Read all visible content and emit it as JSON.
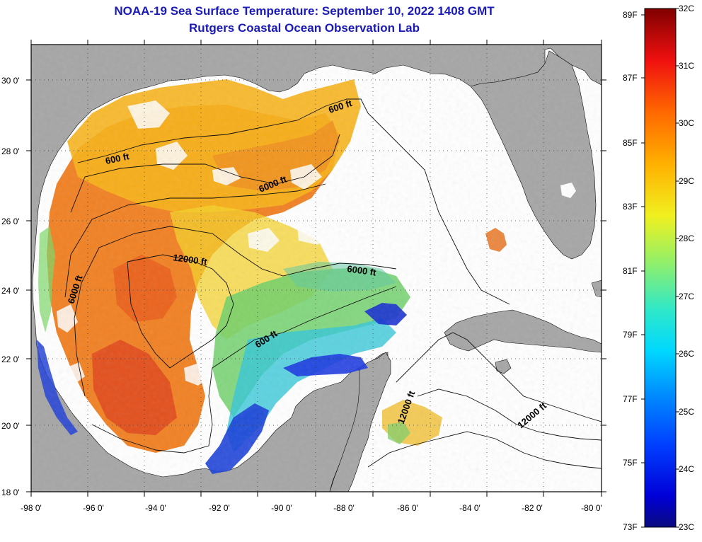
{
  "title": {
    "line1": "NOAA-19 Sea Surface Temperature:  September 10, 2022 1408 GMT",
    "line2": "Rutgers Coastal Ocean Observation Lab"
  },
  "map": {
    "longitude_labels": [
      "-98 0'",
      "-96 0'",
      "-94 0'",
      "-92 0'",
      "-90 0'",
      "-88 0'",
      "-86 0'",
      "-84 0'",
      "-82 0'",
      "-80 0'"
    ],
    "latitude_labels": [
      "30 0'",
      "28 0'",
      "26 0'",
      "24 0'",
      "22 0'",
      "20 0'",
      "18 0'"
    ],
    "contour_labels": [
      "600 ft",
      "600 ft",
      "6000 ft",
      "12000 ft",
      "6000 ft",
      "6000 ft",
      "600 ft",
      "12000 ft",
      "12000 ft"
    ],
    "colors": {
      "land": "#a6a6a6",
      "no_data": "#ffffff",
      "frame": "#000000",
      "title": "#1a1ab8"
    }
  },
  "colorbar": {
    "fahrenheit_labels": [
      "89F",
      "87F",
      "85F",
      "83F",
      "81F",
      "79F",
      "77F",
      "75F",
      "73F"
    ],
    "celsius_labels": [
      "32C",
      "31C",
      "30C",
      "29C",
      "28C",
      "27C",
      "26C",
      "25C",
      "24C",
      "23C"
    ],
    "range_c": [
      23,
      32
    ]
  }
}
